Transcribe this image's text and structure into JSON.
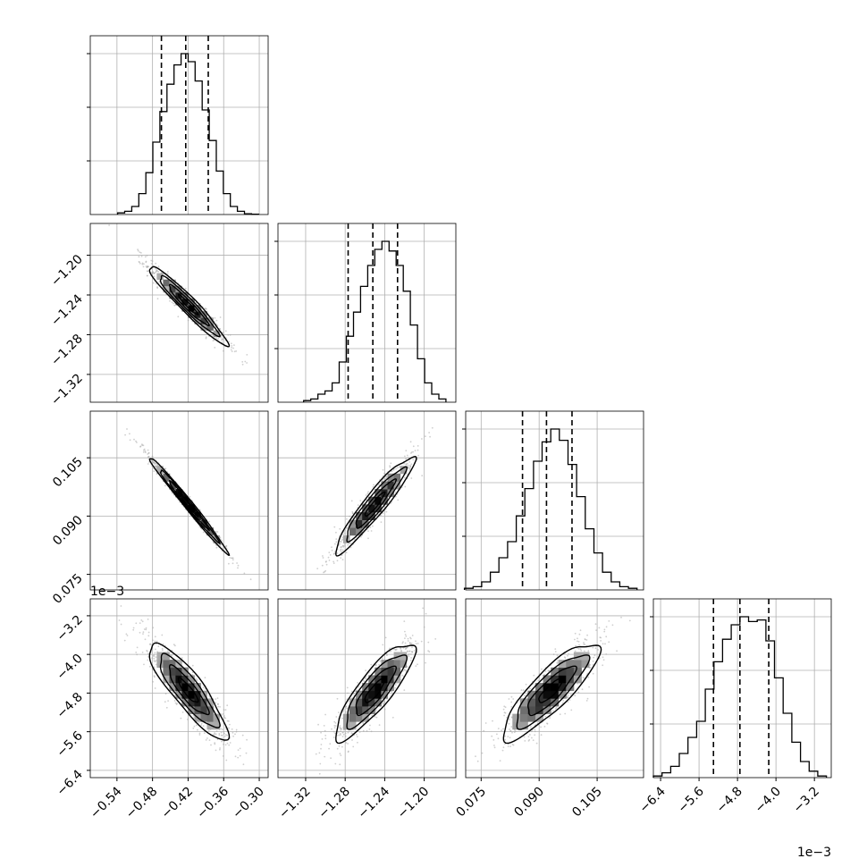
{
  "chart_data": {
    "type": "corner",
    "grid": true,
    "colors": {
      "line": "#000000",
      "grid": "#b0b0b0",
      "scatter": "#a8a8a8"
    },
    "params": [
      {
        "range": [
          -0.585,
          -0.285
        ],
        "ticks": [
          -0.54,
          -0.48,
          -0.42,
          -0.36,
          -0.3
        ],
        "tick_labels": [
          "−0.54",
          "−0.48",
          "−0.42",
          "−0.36",
          "−0.30"
        ],
        "mean": -0.42,
        "sd": 0.033,
        "quantiles": [
          -0.465,
          -0.424,
          -0.386
        ],
        "hist": [
          0.01,
          0.02,
          0.05,
          0.13,
          0.26,
          0.45,
          0.64,
          0.81,
          0.93,
          1.0,
          0.95,
          0.83,
          0.65,
          0.46,
          0.27,
          0.13,
          0.05,
          0.02,
          0.005,
          0.002
        ],
        "offset_label": ""
      },
      {
        "range": [
          -1.348,
          -1.168
        ],
        "ticks": [
          -1.32,
          -1.28,
          -1.24,
          -1.2
        ],
        "tick_labels": [
          "−1.32",
          "−1.28",
          "−1.24",
          "−1.20"
        ],
        "mean": -1.25,
        "sd": 0.02,
        "quantiles": [
          -1.277,
          -1.252,
          -1.227
        ],
        "hist": [
          0.01,
          0.02,
          0.05,
          0.07,
          0.12,
          0.25,
          0.41,
          0.56,
          0.72,
          0.85,
          0.95,
          1.0,
          0.94,
          0.85,
          0.69,
          0.48,
          0.27,
          0.12,
          0.05,
          0.02
        ],
        "offset_label": ""
      },
      {
        "range": [
          0.071,
          0.117
        ],
        "ticks": [
          0.075,
          0.09,
          0.105
        ],
        "tick_labels": [
          "0.075",
          "0.090",
          "0.105"
        ],
        "mean": 0.093,
        "sd": 0.0062,
        "quantiles": [
          0.0857,
          0.0919,
          0.0985
        ],
        "hist": [
          0.01,
          0.02,
          0.05,
          0.11,
          0.2,
          0.3,
          0.46,
          0.63,
          0.8,
          0.92,
          1.0,
          0.93,
          0.78,
          0.58,
          0.38,
          0.23,
          0.11,
          0.05,
          0.02,
          0.01
        ],
        "offset_label": ""
      },
      {
        "range": [
          -6.55,
          -2.85
        ],
        "ticks": [
          -6.4,
          -5.6,
          -4.8,
          -4.0,
          -3.2
        ],
        "tick_labels": [
          "−6.4",
          "−5.6",
          "−4.8",
          "−4.0",
          "−3.2"
        ],
        "mean": -4.75,
        "sd": 0.5,
        "quantiles": [
          -5.3,
          -4.75,
          -4.15
        ],
        "hist": [
          0.01,
          0.03,
          0.07,
          0.15,
          0.25,
          0.35,
          0.55,
          0.72,
          0.86,
          0.95,
          1.0,
          0.97,
          0.98,
          0.85,
          0.62,
          0.4,
          0.22,
          0.1,
          0.04,
          0.01
        ],
        "offset_label": "1e−3"
      }
    ],
    "correlations": [
      {
        "row": 1,
        "col": 0,
        "rho": -0.96
      },
      {
        "row": 2,
        "col": 0,
        "rho": -0.99
      },
      {
        "row": 2,
        "col": 1,
        "rho": 0.94
      },
      {
        "row": 3,
        "col": 0,
        "rho": -0.87
      },
      {
        "row": 3,
        "col": 1,
        "rho": 0.85
      },
      {
        "row": 3,
        "col": 2,
        "rho": 0.85
      }
    ]
  }
}
